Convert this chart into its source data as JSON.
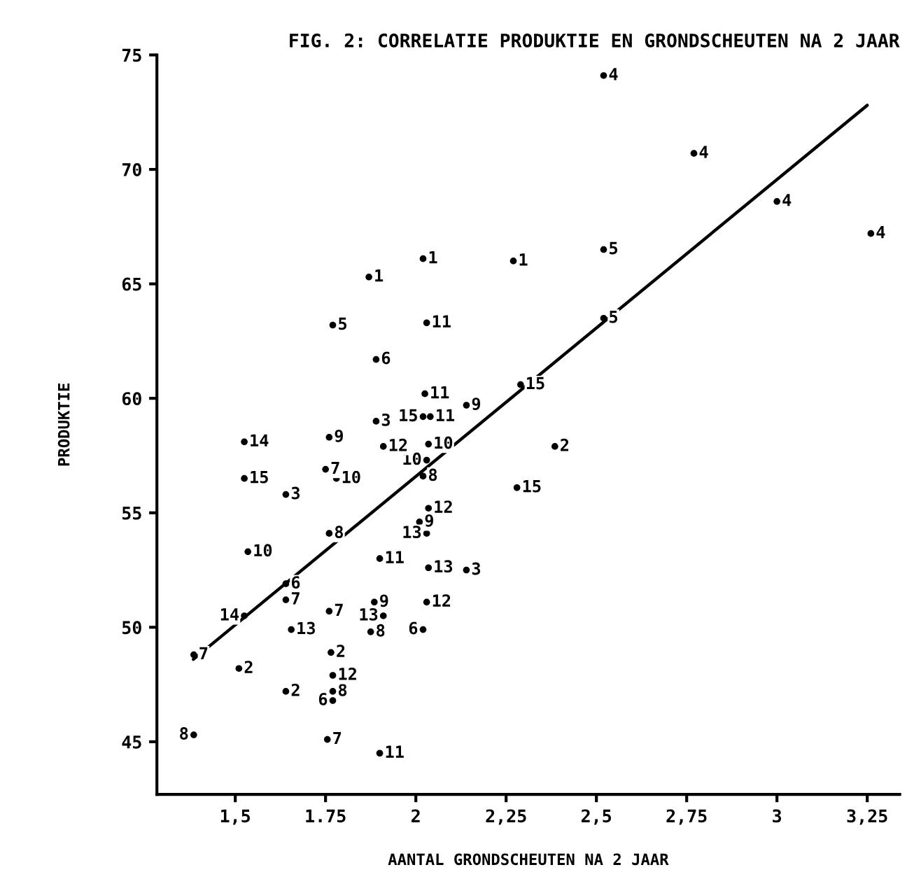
{
  "chart_data": {
    "type": "scatter",
    "title": "FIG. 2: CORRELATIE PRODUKTIE EN GRONDSCHEUTEN NA 2 JAAR",
    "xlabel": "AANTAL GRONDSCHEUTEN NA 2 JAAR",
    "ylabel": "PRODUKTIE",
    "xlim": [
      1.283,
      3.34
    ],
    "ylim": [
      42.7,
      75
    ],
    "xticks": [
      {
        "value": 1.5,
        "label": "1,5"
      },
      {
        "value": 1.75,
        "label": "1.75"
      },
      2,
      {
        "value": 2.25,
        "label": "2,25"
      },
      {
        "value": 2.5,
        "label": "2,5"
      },
      {
        "value": 2.75,
        "label": "2,75"
      },
      3,
      {
        "value": 3.25,
        "label": "3,25"
      }
    ],
    "yticks": [
      45,
      50,
      55,
      60,
      65,
      70,
      75
    ],
    "grid": false,
    "legend": false,
    "series": [
      {
        "name": "1",
        "color": "#000000",
        "x": [
          2.02,
          2.27,
          1.87
        ],
        "values": [
          66.1,
          66.0,
          65.3
        ]
      },
      {
        "name": "2",
        "color": "#000000",
        "x": [
          2.385,
          1.765,
          1.51,
          1.64
        ],
        "values": [
          57.9,
          48.9,
          48.2,
          47.2
        ]
      },
      {
        "name": "3",
        "color": "#000000",
        "x": [
          1.89,
          1.64,
          2.14
        ],
        "values": [
          59.0,
          55.8,
          52.5
        ]
      },
      {
        "name": "4",
        "color": "#000000",
        "x": [
          2.52,
          2.77,
          3.0,
          3.26
        ],
        "values": [
          74.1,
          70.7,
          68.6,
          67.2
        ]
      },
      {
        "name": "5",
        "color": "#000000",
        "x": [
          2.52,
          1.77,
          2.52
        ],
        "values": [
          66.5,
          63.2,
          63.5
        ]
      },
      {
        "name": "6",
        "color": "#000000",
        "x": [
          1.89,
          1.64,
          2.02,
          1.77
        ],
        "values": [
          61.7,
          51.9,
          49.9,
          46.8
        ]
      },
      {
        "name": "7",
        "color": "#000000",
        "x": [
          1.75,
          1.64,
          1.76,
          1.385,
          1.755
        ],
        "values": [
          56.9,
          51.2,
          50.7,
          48.8,
          45.1
        ]
      },
      {
        "name": "8",
        "color": "#000000",
        "x": [
          2.02,
          1.76,
          1.875,
          1.77,
          1.385
        ],
        "values": [
          56.6,
          54.1,
          49.8,
          47.2,
          45.3
        ]
      },
      {
        "name": "9",
        "color": "#000000",
        "x": [
          2.14,
          1.76,
          2.01,
          1.885
        ],
        "values": [
          59.7,
          58.3,
          54.6,
          51.1
        ]
      },
      {
        "name": "10",
        "color": "#000000",
        "x": [
          2.035,
          1.78,
          2.03,
          1.535
        ],
        "values": [
          58.0,
          56.5,
          57.3,
          53.3
        ]
      },
      {
        "name": "11",
        "color": "#000000",
        "x": [
          2.03,
          2.025,
          2.04,
          1.9,
          1.9
        ],
        "values": [
          63.3,
          60.2,
          59.2,
          53.0,
          44.5
        ]
      },
      {
        "name": "12",
        "color": "#000000",
        "x": [
          1.91,
          2.035,
          2.03,
          1.77
        ],
        "values": [
          57.9,
          55.2,
          51.1,
          47.9
        ]
      },
      {
        "name": "13",
        "color": "#000000",
        "x": [
          2.03,
          2.035,
          1.91,
          1.655
        ],
        "values": [
          54.1,
          52.6,
          50.5,
          49.9
        ]
      },
      {
        "name": "14",
        "color": "#000000",
        "x": [
          1.525,
          1.525
        ],
        "values": [
          58.1,
          50.5
        ]
      },
      {
        "name": "15",
        "color": "#000000",
        "x": [
          2.29,
          2.02,
          1.525,
          2.28
        ],
        "values": [
          60.6,
          59.2,
          56.5,
          56.1
        ]
      },
      {
        "type": "line",
        "color": "#000000",
        "x": [
          1.384,
          3.25
        ],
        "values": [
          48.6,
          72.8
        ]
      }
    ]
  }
}
